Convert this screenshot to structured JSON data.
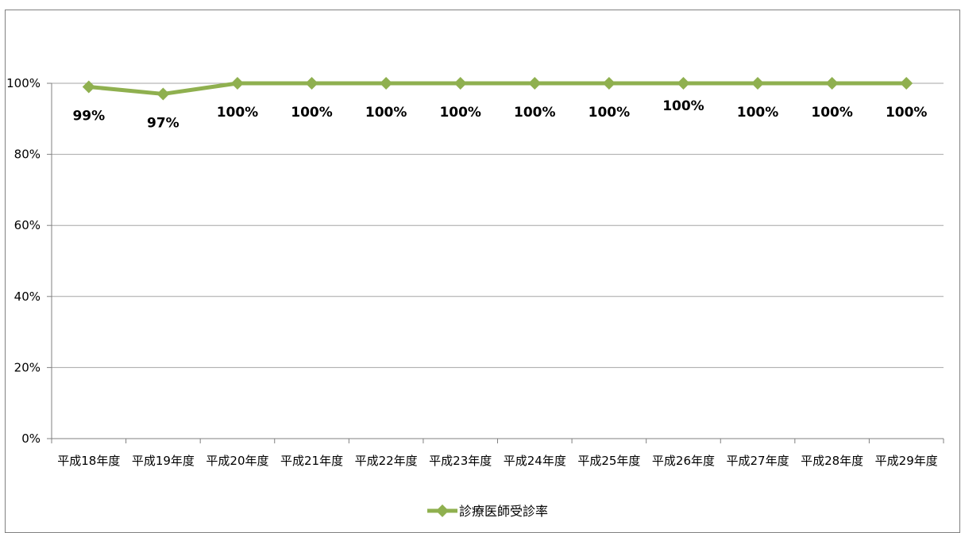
{
  "chart_data": {
    "type": "line",
    "categories": [
      "平成18年度",
      "平成19年度",
      "平成20年度",
      "平成21年度",
      "平成22年度",
      "平成23年度",
      "平成24年度",
      "平成25年度",
      "平成26年度",
      "平成27年度",
      "平成28年度",
      "平成29年度"
    ],
    "series": [
      {
        "name": "診療医師受診率",
        "values": [
          99,
          97,
          100,
          100,
          100,
          100,
          100,
          100,
          100,
          100,
          100,
          100
        ],
        "labels": [
          "99%",
          "97%",
          "100%",
          "100%",
          "100%",
          "100%",
          "100%",
          "100%",
          "100%",
          "100%",
          "100%",
          "100%"
        ],
        "color": "#8fb04f",
        "marker": "diamond"
      }
    ],
    "yticks": [
      "0%",
      "20%",
      "40%",
      "60%",
      "80%",
      "100%"
    ],
    "ylim": [
      0,
      100
    ],
    "grid": true,
    "legend": "bottom"
  }
}
